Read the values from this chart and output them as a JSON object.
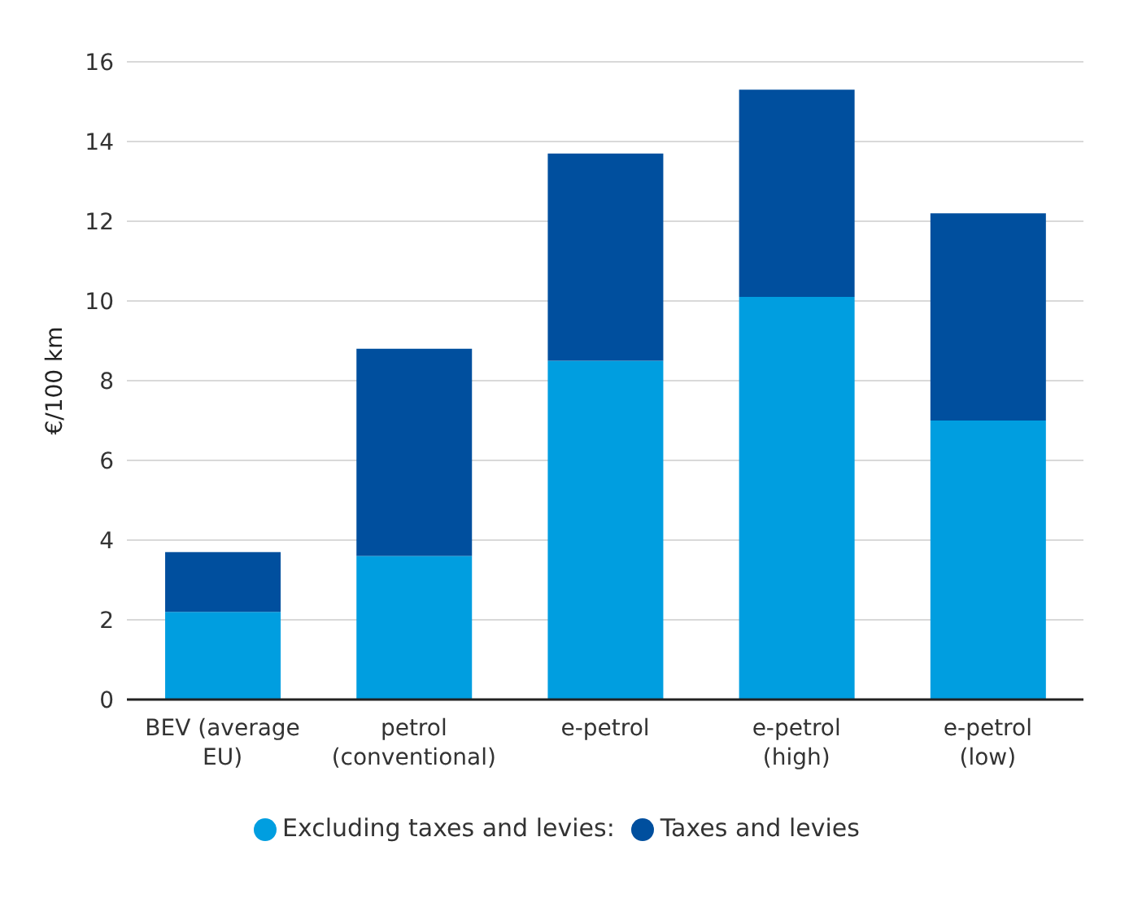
{
  "chart_data": {
    "type": "bar",
    "stacked": true,
    "ylabel": "€/100 km",
    "categories": [
      "BEV (average EU)",
      "petrol (conventional)",
      "e-petrol",
      "e-petrol (high)",
      "e-petrol (low)"
    ],
    "series": [
      {
        "name": "Excluding taxes and levies:",
        "color": "#009ee0",
        "values": [
          2.2,
          3.6,
          8.5,
          10.1,
          7.0
        ]
      },
      {
        "name": "Taxes and levies",
        "color": "#004f9e",
        "values": [
          1.5,
          5.2,
          5.2,
          5.2,
          5.2
        ]
      }
    ],
    "ylim": [
      0,
      16
    ],
    "yticks": [
      0,
      2,
      4,
      6,
      8,
      10,
      12,
      14,
      16
    ],
    "grid": "y",
    "legend": "bottom"
  }
}
